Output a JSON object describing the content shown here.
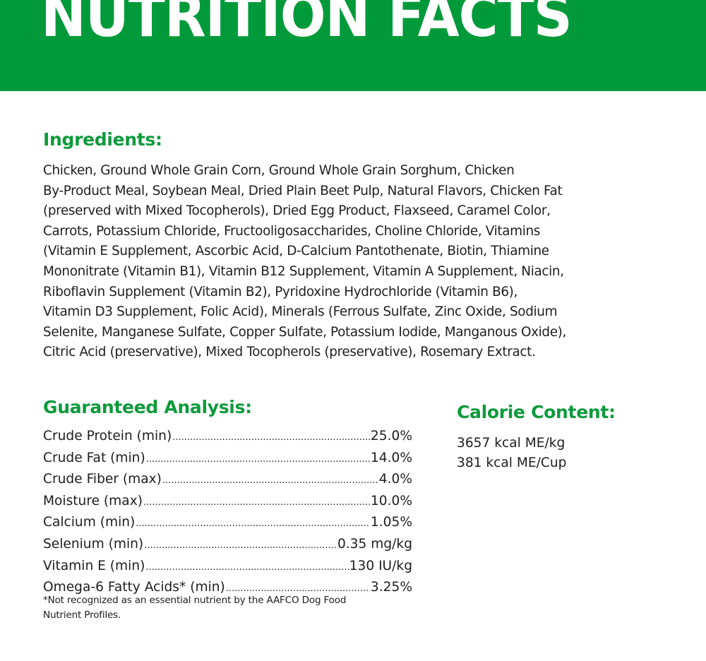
{
  "header": {
    "title": "NUTRITION FACTS",
    "brand_color": "#009a3a"
  },
  "ingredients": {
    "heading": "Ingredients:",
    "lines": [
      "Chicken, Ground Whole Grain Corn, Ground Whole Grain Sorghum, Chicken",
      "By-Product Meal, Soybean Meal, Dried Plain Beet Pulp, Natural Flavors, Chicken Fat",
      "(preserved with Mixed Tocopherols), Dried Egg Product, Flaxseed, Caramel Color,",
      "Carrots, Potassium Chloride, Fructooligosaccharides, Choline Chloride, Vitamins",
      "(Vitamin E Supplement, Ascorbic Acid, D-Calcium Pantothenate, Biotin, Thiamine",
      "Mononitrate (Vitamin B1), Vitamin B12 Supplement, Vitamin A Supplement, Niacin,",
      "Riboflavin Supplement (Vitamin B2), Pyridoxine Hydrochloride (Vitamin B6),",
      "Vitamin D3 Supplement, Folic Acid), Minerals (Ferrous Sulfate, Zinc Oxide, Sodium",
      "Selenite, Manganese Sulfate, Copper Sulfate, Potassium Iodide, Manganous Oxide),",
      "Citric Acid (preservative), Mixed Tocopherols (preservative), Rosemary Extract."
    ]
  },
  "guaranteed_analysis": {
    "heading": "Guaranteed Analysis:",
    "rows": [
      {
        "label": "Crude Protein (min)",
        "value": "25.0%"
      },
      {
        "label": "Crude Fat (min)",
        "value": "14.0%"
      },
      {
        "label": "Crude Fiber (max)",
        "value": "4.0%"
      },
      {
        "label": "Moisture (max)",
        "value": "10.0%"
      },
      {
        "label": "Calcium (min)",
        "value": "1.05%"
      },
      {
        "label": "Selenium (min)",
        "value": "0.35 mg/kg"
      },
      {
        "label": "Vitamin E (min)",
        "value": "130 IU/kg"
      },
      {
        "label": "Omega-6 Fatty Acids* (min)",
        "value": "3.25%"
      }
    ],
    "footnote_lines": [
      "*Not recognized as an essential nutrient by the AAFCO Dog Food",
      "Nutrient Profiles."
    ]
  },
  "calorie_content": {
    "heading": "Calorie Content:",
    "values": [
      "3657 kcal ME/kg",
      "381 kcal ME/Cup"
    ]
  }
}
